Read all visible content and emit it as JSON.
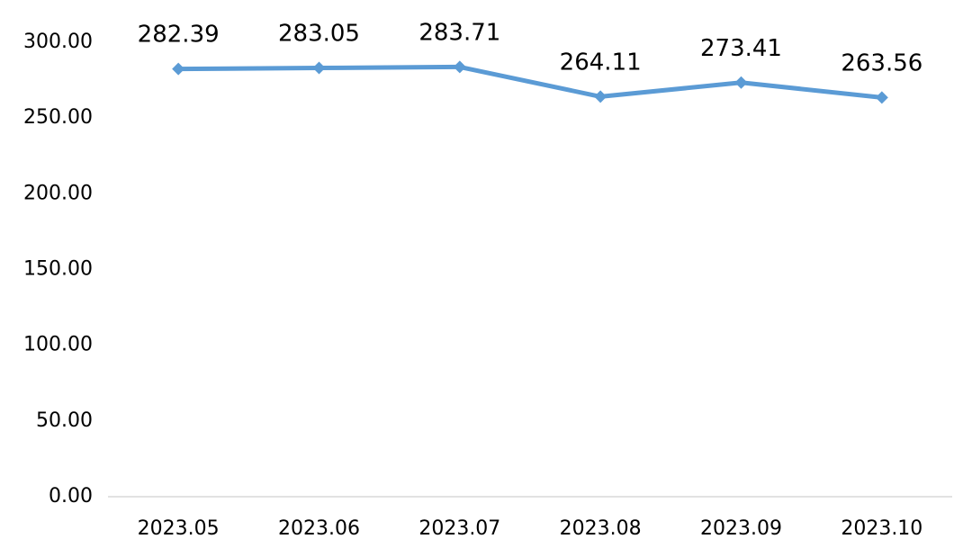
{
  "chart_data": {
    "type": "line",
    "title": "",
    "xlabel": "",
    "ylabel": "",
    "categories": [
      "2023.05",
      "2023.06",
      "2023.07",
      "2023.08",
      "2023.09",
      "2023.10"
    ],
    "series": [
      {
        "values": [
          282.39,
          283.05,
          283.71,
          264.11,
          273.41,
          263.56
        ],
        "labels": [
          "282.39",
          "283.05",
          "283.71",
          "264.11",
          "273.41",
          "263.56"
        ],
        "color": "#5B9BD5"
      }
    ],
    "ylim": [
      0,
      300
    ],
    "ytick_values": [
      0,
      50,
      100,
      150,
      200,
      250,
      300
    ],
    "ytick_labels": [
      "0.00",
      "50.00",
      "100.00",
      "150.00",
      "200.00",
      "250.00",
      "300.00"
    ],
    "grid": false,
    "legend": "none",
    "axis_color": "#D9D9D9",
    "marker": "diamond"
  }
}
